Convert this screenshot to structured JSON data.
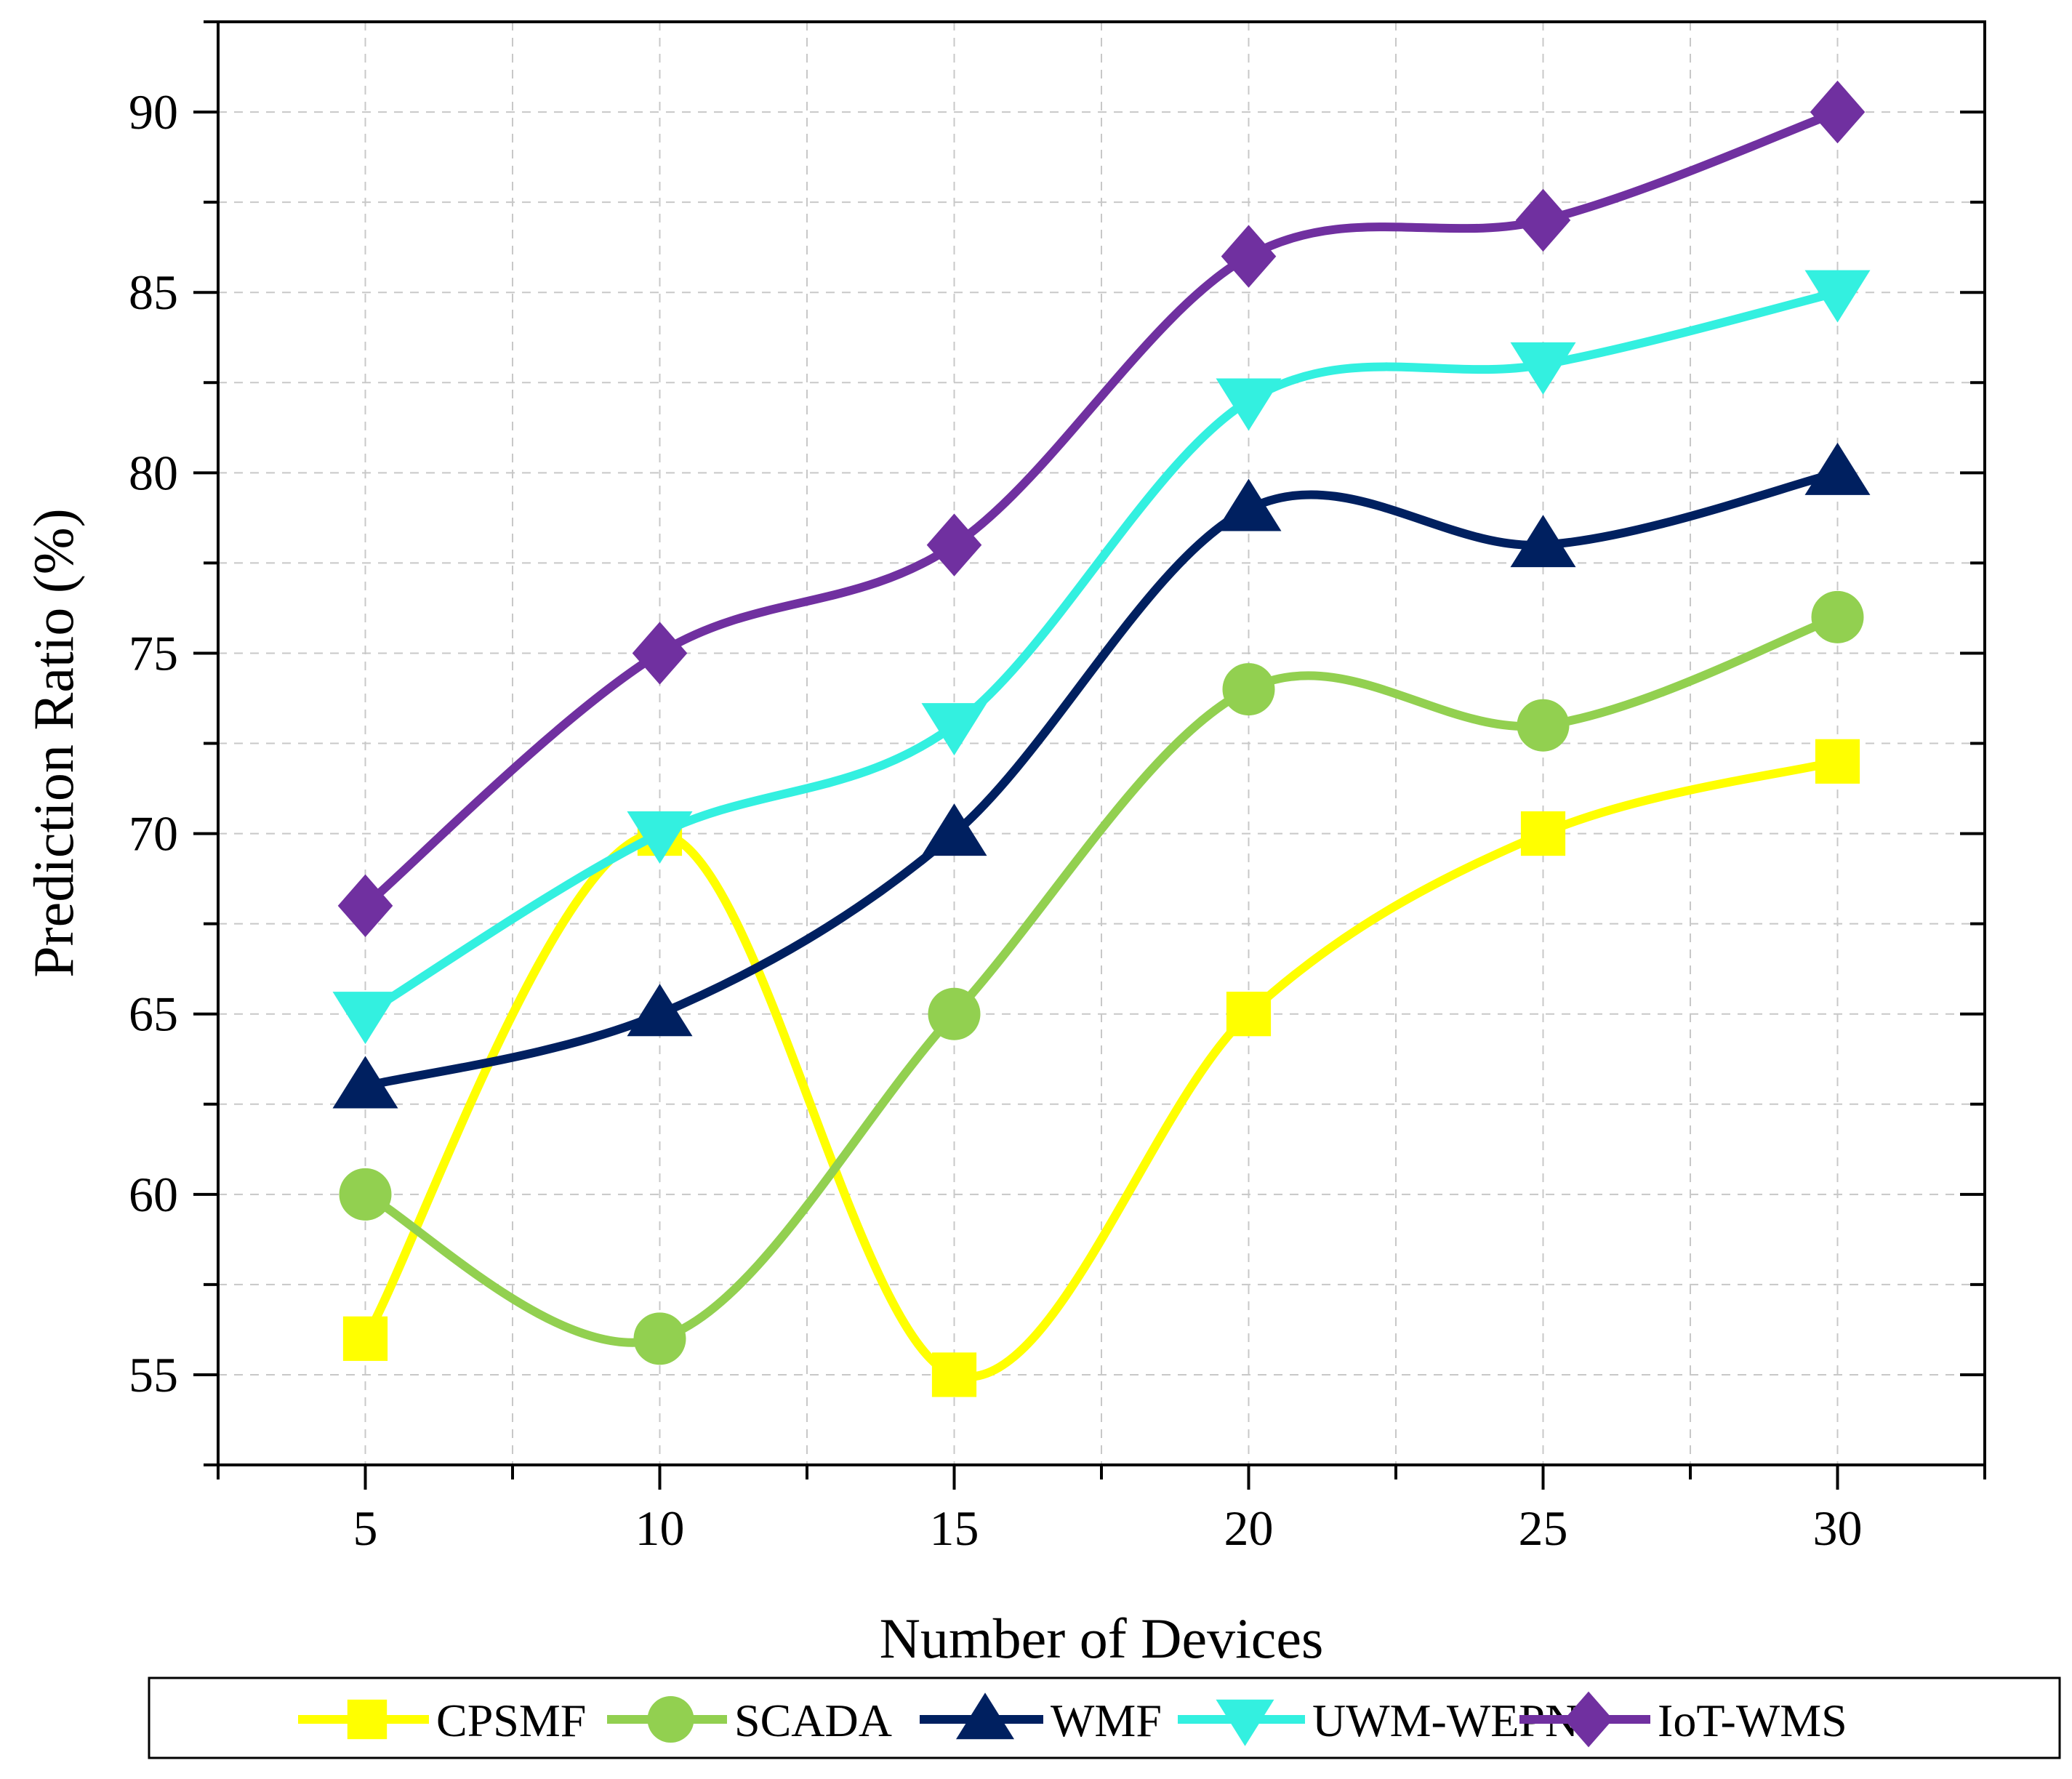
{
  "chart_data": {
    "type": "line",
    "title": "",
    "xlabel": "Number of Devices",
    "ylabel": "Prediction Ratio (%)",
    "x": [
      5,
      10,
      15,
      20,
      25,
      30
    ],
    "xlim": [
      2.5,
      32.5
    ],
    "ylim": [
      52.5,
      92.5
    ],
    "xticks": [
      "5",
      "10",
      "15",
      "20",
      "25",
      "30"
    ],
    "yticks": [
      "55",
      "60",
      "65",
      "70",
      "75",
      "80",
      "85",
      "90"
    ],
    "grid": true,
    "legend_position": "bottom",
    "series": [
      {
        "name": "CPSMF",
        "color": "#FFFF00",
        "marker": "square",
        "values": [
          56,
          70,
          55,
          65,
          70,
          72
        ]
      },
      {
        "name": "SCADA",
        "color": "#92D050",
        "marker": "circle",
        "values": [
          60,
          56,
          65,
          74,
          73,
          76
        ]
      },
      {
        "name": "WMF",
        "color": "#002060",
        "marker": "triangle-up",
        "values": [
          63,
          65,
          70,
          79,
          78,
          80
        ]
      },
      {
        "name": "UWM-WEPN",
        "color": "#33F0E0",
        "marker": "triangle-down",
        "values": [
          65,
          70,
          73,
          82,
          83,
          85
        ]
      },
      {
        "name": "IoT-WMS",
        "color": "#7030A0",
        "marker": "diamond",
        "values": [
          68,
          75,
          78,
          86,
          87,
          90
        ]
      }
    ]
  }
}
